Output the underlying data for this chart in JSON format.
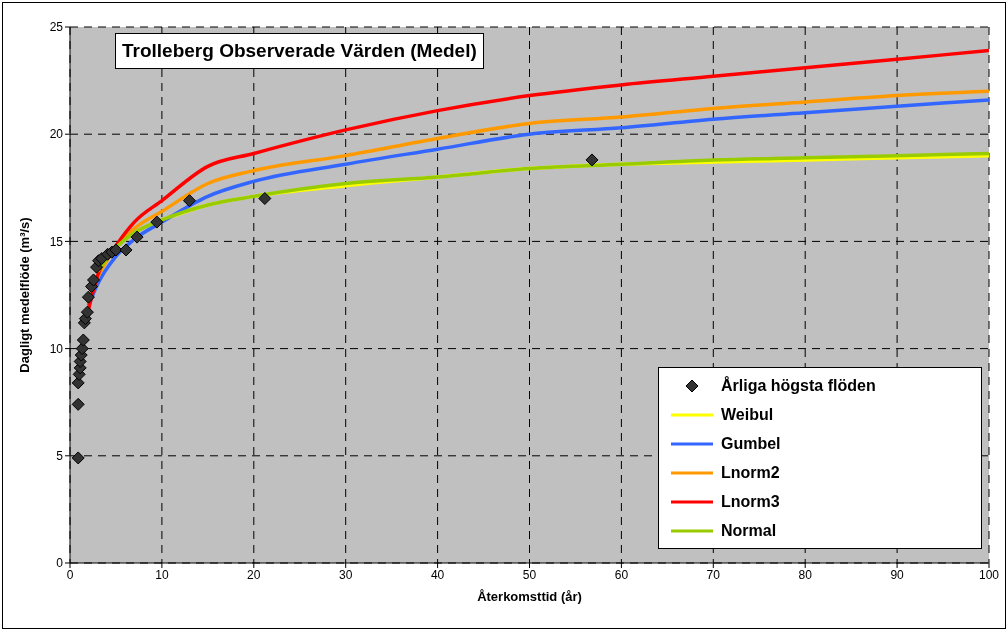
{
  "chart_data": {
    "type": "line",
    "title": "Trolleberg Observerade Värden (Medel)",
    "xlabel": "Återkomsttid (år)",
    "ylabel": "Dagligt medelflöde (m³/s)",
    "xlim": [
      0,
      100
    ],
    "xticks": [
      0,
      10,
      20,
      30,
      40,
      50,
      60,
      70,
      80,
      90,
      100
    ],
    "ylim": [
      0,
      25
    ],
    "yticks": [
      0,
      5,
      10,
      15,
      20,
      25
    ],
    "grid": true,
    "legend": "bottom right",
    "line_style": "solid",
    "series": [
      {
        "name": "Årliga högsta flöden",
        "type": "scatter",
        "marker": "diamond",
        "color": "#333333",
        "x": [
          0.89,
          0.89,
          0.89,
          1.0,
          1.11,
          1.11,
          1.22,
          1.33,
          1.45,
          1.56,
          1.67,
          1.89,
          2.0,
          2.34,
          2.56,
          2.89,
          3.11,
          3.45,
          4.1,
          4.56,
          5.0,
          6.1,
          7.3,
          9.45,
          13.0,
          21.2,
          56.8
        ],
        "values": [
          4.9,
          7.4,
          8.4,
          8.8,
          9.1,
          9.4,
          9.7,
          10.0,
          10.4,
          11.2,
          11.4,
          11.7,
          12.4,
          12.9,
          13.2,
          13.8,
          14.1,
          14.2,
          14.4,
          14.5,
          14.6,
          14.6,
          15.2,
          15.9,
          16.9,
          17.0,
          18.8
        ]
      },
      {
        "name": "Weibul",
        "color": "#ffff00",
        "x": [
          10,
          15,
          20,
          30,
          40,
          50,
          60,
          70,
          80,
          90,
          100
        ],
        "values": [
          16.0,
          16.7,
          17.1,
          17.6,
          18.0,
          18.4,
          18.6,
          18.7,
          18.8,
          18.9,
          19.0
        ]
      },
      {
        "name": "Gumbel",
        "color": "#3366ff",
        "x": [
          2,
          3,
          5,
          7,
          10,
          15,
          20,
          30,
          40,
          50,
          60,
          70,
          80,
          90,
          100
        ],
        "values": [
          12.0,
          13.0,
          14.3,
          15.1,
          15.9,
          17.1,
          17.8,
          18.6,
          19.3,
          20.0,
          20.3,
          20.7,
          21.0,
          21.3,
          21.6
        ]
      },
      {
        "name": "Lnorm2",
        "color": "#ff9900",
        "x": [
          2,
          3,
          5,
          7,
          10,
          15,
          20,
          30,
          40,
          50,
          60,
          70,
          80,
          90,
          100
        ],
        "values": [
          12.1,
          13.3,
          14.7,
          15.6,
          16.4,
          17.7,
          18.3,
          19.0,
          19.8,
          20.5,
          20.8,
          21.2,
          21.5,
          21.8,
          22.0
        ]
      },
      {
        "name": "Lnorm3",
        "color": "#ff0000",
        "x": [
          2,
          3,
          5,
          7,
          10,
          15,
          20,
          30,
          40,
          50,
          60,
          70,
          80,
          90,
          100
        ],
        "values": [
          11.8,
          13.4,
          14.8,
          15.9,
          16.9,
          18.5,
          19.1,
          20.2,
          21.1,
          21.8,
          22.3,
          22.7,
          23.1,
          23.5,
          23.9
        ]
      },
      {
        "name": "Normal",
        "color": "#99cc00",
        "x": [
          3,
          5,
          7,
          10,
          15,
          20,
          30,
          40,
          50,
          60,
          70,
          80,
          90,
          100
        ],
        "values": [
          13.6,
          14.7,
          15.4,
          16.0,
          16.7,
          17.1,
          17.7,
          18.0,
          18.4,
          18.6,
          18.8,
          18.9,
          19.0,
          19.1
        ]
      }
    ]
  }
}
